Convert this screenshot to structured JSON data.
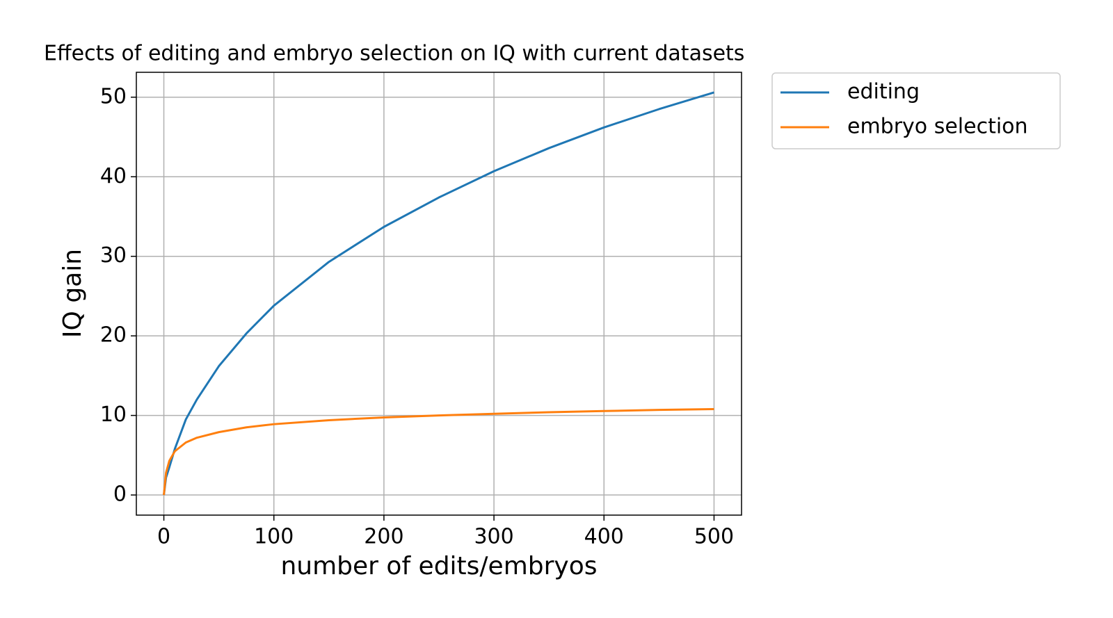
{
  "chart_data": {
    "type": "line",
    "title": "Effects of editing and embryo selection on IQ with current datasets",
    "xlabel": "number of edits/embryos",
    "ylabel": "IQ gain",
    "x": [
      0,
      2,
      5,
      10,
      20,
      30,
      50,
      75,
      100,
      150,
      200,
      250,
      300,
      350,
      400,
      450,
      500
    ],
    "series": [
      {
        "name": "editing",
        "color": "#1f77b4",
        "values": [
          0,
          2.2,
          3.5,
          5.8,
          9.5,
          12,
          16.2,
          20.3,
          23.8,
          29.3,
          33.7,
          37.4,
          40.7,
          43.6,
          46.2,
          48.5,
          50.6
        ]
      },
      {
        "name": "embryo selection",
        "color": "#ff7f0e",
        "values": [
          0,
          2.8,
          4.3,
          5.5,
          6.6,
          7.2,
          7.9,
          8.5,
          8.9,
          9.4,
          9.75,
          10.0,
          10.2,
          10.4,
          10.55,
          10.7,
          10.8
        ]
      }
    ],
    "xlim": [
      -25,
      525
    ],
    "xticks": [
      0,
      100,
      200,
      300,
      400,
      500
    ],
    "ylim": [
      -2.53,
      53.13
    ],
    "yticks": [
      0,
      10,
      20,
      30,
      40,
      50
    ],
    "grid": true,
    "legend": "outside-upper-right"
  }
}
